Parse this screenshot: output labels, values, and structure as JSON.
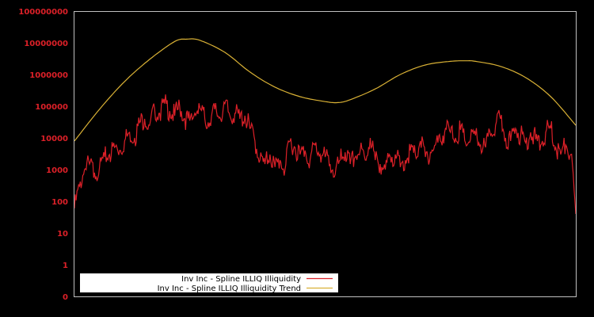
{
  "chart_data": {
    "type": "line",
    "title": "",
    "xlabel": "",
    "ylabel": "",
    "yscale": "log",
    "ylim": [
      0,
      100000000
    ],
    "y_ticks": [
      "0",
      "1",
      "10",
      "100",
      "1000",
      "10000",
      "100000",
      "1000000",
      "10000000",
      "100000000"
    ],
    "x_ticks": [],
    "grid": false,
    "legend_position": "bottom-left",
    "background": "#000000",
    "axis_color": "#c0c0c0",
    "tick_label_color": "#dc2028",
    "series": [
      {
        "name": "Inv Inc - Spline ILLIQ Illiquidity",
        "color": "#dc2028",
        "note": "approximate sampled values (noisy daily series), x normalized 0..1",
        "x": [
          0.0,
          0.01,
          0.02,
          0.03,
          0.04,
          0.05,
          0.06,
          0.07,
          0.08,
          0.09,
          0.1,
          0.11,
          0.12,
          0.13,
          0.14,
          0.15,
          0.16,
          0.17,
          0.18,
          0.19,
          0.2,
          0.21,
          0.22,
          0.23,
          0.24,
          0.25,
          0.26,
          0.27,
          0.28,
          0.29,
          0.3,
          0.31,
          0.32,
          0.33,
          0.34,
          0.35,
          0.36,
          0.37,
          0.38,
          0.39,
          0.4,
          0.41,
          0.42,
          0.43,
          0.44,
          0.45,
          0.46,
          0.47,
          0.48,
          0.49,
          0.5,
          0.51,
          0.52,
          0.53,
          0.54,
          0.55,
          0.56,
          0.57,
          0.58,
          0.59,
          0.6,
          0.61,
          0.62,
          0.63,
          0.64,
          0.65,
          0.66,
          0.67,
          0.68,
          0.69,
          0.7,
          0.71,
          0.72,
          0.73,
          0.74,
          0.75,
          0.76,
          0.77,
          0.78,
          0.79,
          0.8,
          0.81,
          0.82,
          0.83,
          0.84,
          0.85,
          0.86,
          0.87,
          0.88,
          0.89,
          0.9,
          0.91,
          0.92,
          0.93,
          0.94,
          0.95,
          0.96,
          0.97,
          0.98,
          0.99,
          1.0
        ],
        "values": [
          60,
          300,
          1000,
          1500,
          800,
          1200,
          2500,
          3000,
          5000,
          4000,
          8000,
          15000,
          10000,
          30000,
          40000,
          25000,
          80000,
          60000,
          120000,
          70000,
          50000,
          100000,
          40000,
          35000,
          60000,
          90000,
          40000,
          30000,
          80000,
          45000,
          120000,
          50000,
          60000,
          40000,
          50000,
          20000,
          8000,
          2000,
          1500,
          3000,
          1200,
          2000,
          1000,
          8000,
          5000,
          3000,
          4000,
          2000,
          6000,
          3000,
          2500,
          1500,
          700,
          2000,
          3500,
          1500,
          2500,
          4000,
          2000,
          10000,
          2000,
          1500,
          1000,
          2500,
          3000,
          1200,
          2000,
          4000,
          3000,
          8000,
          2500,
          3500,
          6000,
          8000,
          20000,
          15000,
          10000,
          18000,
          7000,
          9000,
          12000,
          6000,
          5000,
          12000,
          25000,
          40000,
          10000,
          8000,
          20000,
          12000,
          7000,
          15000,
          9000,
          6000,
          15000,
          20000,
          5000,
          3000,
          6000,
          3000,
          40
        ]
      },
      {
        "name": "Inv Inc - Spline ILLIQ Illiquidity Trend",
        "color": "#d9b135",
        "note": "smooth trend, x normalized 0..1",
        "x": [
          0.0,
          0.05,
          0.1,
          0.15,
          0.2,
          0.224,
          0.25,
          0.3,
          0.35,
          0.4,
          0.45,
          0.5,
          0.526,
          0.55,
          0.6,
          0.65,
          0.7,
          0.75,
          0.78,
          0.8,
          0.85,
          0.9,
          0.95,
          1.0
        ],
        "values": [
          8000,
          80000,
          600000,
          3000000,
          11000000,
          13000000,
          12000000,
          5000000,
          1200000,
          400000,
          200000,
          140000,
          130000,
          160000,
          350000,
          1000000,
          2000000,
          2600000,
          2700000,
          2600000,
          1800000,
          800000,
          200000,
          25000
        ]
      }
    ]
  },
  "legend": {
    "items": [
      {
        "label": "Inv Inc - Spline ILLIQ Illiquidity",
        "color": "#dc2028"
      },
      {
        "label": "Inv Inc - Spline ILLIQ Illiquidity Trend",
        "color": "#d9b135"
      }
    ]
  }
}
